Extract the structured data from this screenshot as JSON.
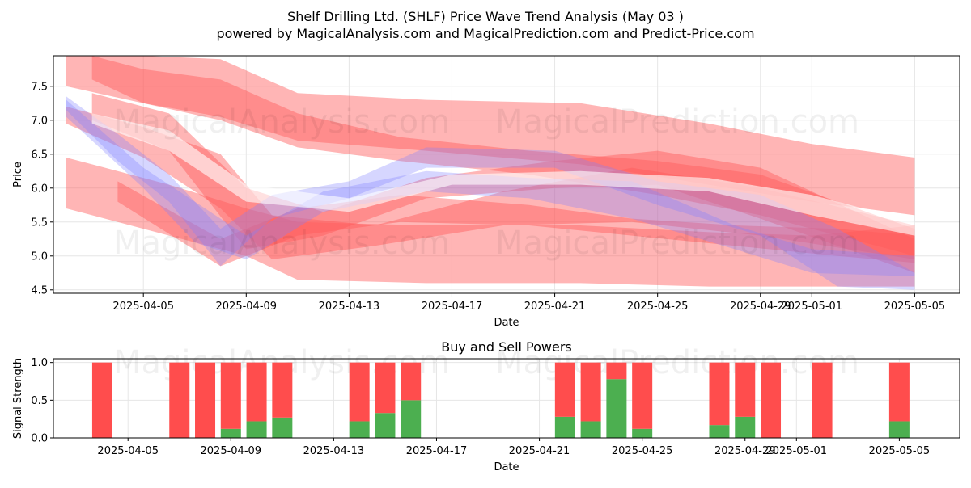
{
  "title_line1": "Shelf Drilling Ltd. (SHLF) Price Wave Trend Analysis (May 03 )",
  "title_line2": "powered by MagicalAnalysis.com and MagicalPrediction.com and Predict-Price.com",
  "watermarks": [
    "MagicalAnalysis.com",
    "MagicalPrediction.com"
  ],
  "colors": {
    "sell": "#ff4d4d",
    "buy": "#4caf50",
    "red_band": "#ff5a5a",
    "blue_band": "#8080ff",
    "white_band": "#ffffff"
  },
  "chart_data": [
    {
      "type": "area",
      "ylabel": "Price",
      "xlabel": "Date",
      "xlim": [
        "2025-04-01 12:00",
        "2025-05-06 18:00"
      ],
      "ylim": [
        4.45,
        7.95
      ],
      "x_ticks": [
        "2025-04-05",
        "2025-04-09",
        "2025-04-13",
        "2025-04-17",
        "2025-04-21",
        "2025-04-25",
        "2025-04-29",
        "2025-05-01",
        "2025-05-05"
      ],
      "y_ticks": [
        4.5,
        5.0,
        5.5,
        6.0,
        6.5,
        7.0,
        7.5
      ],
      "grid": true,
      "series": [
        {
          "color": "red",
          "x": [
            "2025-04-02",
            "2025-04-05",
            "2025-04-08",
            "2025-04-11",
            "2025-04-16",
            "2025-04-22",
            "2025-04-27",
            "2025-05-01",
            "2025-05-05"
          ],
          "upper": [
            7.95,
            7.95,
            7.9,
            7.4,
            7.3,
            7.25,
            6.95,
            6.65,
            6.45
          ],
          "lower": [
            7.5,
            7.25,
            7.05,
            6.7,
            6.55,
            6.35,
            6.05,
            5.8,
            5.6
          ]
        },
        {
          "color": "red",
          "x": [
            "2025-04-03",
            "2025-04-05",
            "2025-04-08",
            "2025-04-11",
            "2025-04-15",
            "2025-04-20",
            "2025-04-25",
            "2025-04-29",
            "2025-05-05"
          ],
          "upper": [
            7.95,
            7.75,
            7.6,
            7.1,
            6.75,
            6.55,
            6.4,
            6.2,
            5.4
          ],
          "lower": [
            7.6,
            7.25,
            7.0,
            6.6,
            6.4,
            6.2,
            5.9,
            5.6,
            5.0
          ]
        },
        {
          "color": "red",
          "x": [
            "2025-04-02",
            "2025-04-06",
            "2025-04-09",
            "2025-04-11",
            "2025-04-16",
            "2025-04-22",
            "2025-04-27",
            "2025-05-01",
            "2025-05-05"
          ],
          "upper": [
            6.45,
            6.05,
            5.7,
            5.5,
            5.45,
            5.45,
            5.35,
            5.3,
            5.45
          ],
          "lower": [
            5.7,
            5.3,
            5.0,
            4.65,
            4.6,
            4.6,
            4.55,
            4.55,
            4.55
          ]
        },
        {
          "color": "red",
          "x": [
            "2025-04-02",
            "2025-04-05",
            "2025-04-08",
            "2025-04-10",
            "2025-04-14",
            "2025-04-19",
            "2025-04-24",
            "2025-04-29",
            "2025-05-05"
          ],
          "upper": [
            7.2,
            6.9,
            6.5,
            5.6,
            5.45,
            5.95,
            6.3,
            6.0,
            5.45
          ],
          "lower": [
            6.95,
            6.45,
            5.7,
            4.95,
            5.15,
            5.45,
            5.5,
            5.3,
            4.95
          ]
        },
        {
          "color": "red",
          "x": [
            "2025-04-03",
            "2025-04-06",
            "2025-04-09",
            "2025-04-12",
            "2025-04-16",
            "2025-04-21",
            "2025-04-25",
            "2025-04-29",
            "2025-05-05"
          ],
          "upper": [
            7.4,
            7.1,
            6.0,
            5.65,
            6.15,
            6.4,
            6.55,
            6.3,
            5.25
          ],
          "lower": [
            7.0,
            6.55,
            5.1,
            5.3,
            5.85,
            6.0,
            6.05,
            5.55,
            4.75
          ]
        },
        {
          "color": "red",
          "x": [
            "2025-04-04",
            "2025-04-08",
            "2025-04-11",
            "2025-04-15",
            "2025-04-20",
            "2025-04-24",
            "2025-04-28",
            "2025-05-02",
            "2025-05-05"
          ],
          "upper": [
            6.1,
            5.25,
            5.7,
            5.9,
            5.75,
            5.55,
            5.45,
            5.4,
            5.3
          ],
          "lower": [
            5.8,
            4.85,
            5.3,
            5.5,
            5.45,
            5.3,
            5.15,
            5.0,
            4.9
          ]
        },
        {
          "color": "blue",
          "x": [
            "2025-04-02",
            "2025-04-04",
            "2025-04-06",
            "2025-04-08",
            "2025-04-10",
            "2025-04-13",
            "2025-04-16",
            "2025-04-21",
            "2025-04-25",
            "2025-04-29",
            "2025-05-02",
            "2025-05-05"
          ],
          "upper": [
            7.35,
            6.8,
            6.2,
            5.4,
            5.9,
            6.1,
            6.6,
            6.55,
            6.1,
            5.9,
            5.4,
            4.75
          ],
          "lower": [
            7.15,
            6.4,
            5.8,
            4.85,
            5.55,
            5.85,
            6.3,
            6.3,
            5.75,
            5.3,
            4.55,
            4.5
          ]
        },
        {
          "color": "blue",
          "x": [
            "2025-04-02",
            "2025-04-05",
            "2025-04-07",
            "2025-04-09",
            "2025-04-12",
            "2025-04-16",
            "2025-04-20",
            "2025-04-24",
            "2025-04-28",
            "2025-05-01",
            "2025-05-05"
          ],
          "upper": [
            7.3,
            6.3,
            5.8,
            5.3,
            5.95,
            6.25,
            6.15,
            6.1,
            5.45,
            5.1,
            5.0
          ],
          "lower": [
            7.05,
            6.0,
            5.2,
            4.95,
            5.65,
            5.95,
            5.85,
            5.55,
            5.1,
            4.75,
            4.7
          ]
        },
        {
          "color": "white",
          "x": [
            "2025-04-03",
            "2025-04-06",
            "2025-04-09",
            "2025-04-13",
            "2025-04-17",
            "2025-04-22",
            "2025-04-27",
            "2025-05-01",
            "2025-05-05"
          ],
          "upper": [
            7.1,
            6.85,
            6.05,
            5.85,
            6.2,
            6.25,
            6.15,
            5.9,
            5.5
          ],
          "lower": [
            6.95,
            6.55,
            5.8,
            5.65,
            6.05,
            6.05,
            5.95,
            5.6,
            5.3
          ]
        }
      ]
    },
    {
      "type": "bar",
      "title": "Buy and Sell Powers",
      "ylabel": "Signal Strength",
      "xlabel": "Date",
      "ylim": [
        0,
        1.05
      ],
      "y_ticks": [
        0.0,
        0.5,
        1.0
      ],
      "x_ticks": [
        "2025-04-05",
        "2025-04-09",
        "2025-04-13",
        "2025-04-17",
        "2025-04-21",
        "2025-04-25",
        "2025-04-29",
        "2025-05-01",
        "2025-05-05"
      ],
      "grid": true,
      "dates": [
        "2025-04-04",
        "2025-04-07",
        "2025-04-08",
        "2025-04-09",
        "2025-04-10",
        "2025-04-11",
        "2025-04-14",
        "2025-04-15",
        "2025-04-16",
        "2025-04-22",
        "2025-04-23",
        "2025-04-24",
        "2025-04-25",
        "2025-04-28",
        "2025-04-29",
        "2025-04-30",
        "2025-05-02",
        "2025-05-05"
      ],
      "buy": [
        0,
        0,
        0,
        0.12,
        0.22,
        0.27,
        0.22,
        0.33,
        0.5,
        0.28,
        0.22,
        0.78,
        0.12,
        0.17,
        0.28,
        0,
        0,
        0.22
      ],
      "sell": [
        1,
        1,
        1,
        0.88,
        0.78,
        0.73,
        0.78,
        0.67,
        0.5,
        0.72,
        0.78,
        0.22,
        0.88,
        0.83,
        0.72,
        1,
        1,
        0.78
      ]
    }
  ]
}
